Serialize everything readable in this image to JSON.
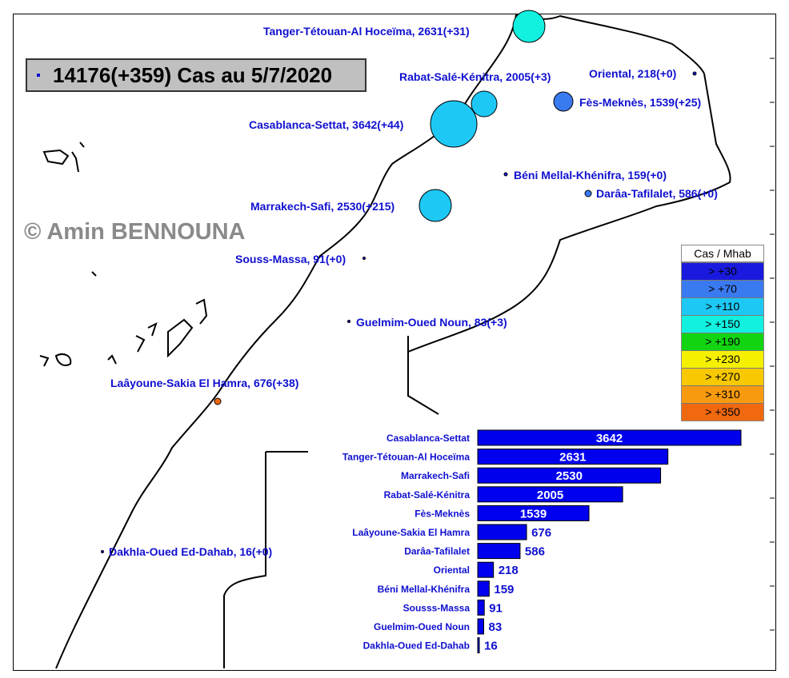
{
  "title": "14176(+359) Cas au 5/7/2020",
  "copyright": "© Amin BENNOUNA",
  "legend": {
    "title": "Cas / Mhab",
    "items": [
      {
        "label": "> +30",
        "color": "#1a1adf"
      },
      {
        "label": "> +70",
        "color": "#3a7af0"
      },
      {
        "label": "> +110",
        "color": "#1ec8f5"
      },
      {
        "label": "> +150",
        "color": "#12f0e0"
      },
      {
        "label": "> +190",
        "color": "#12d412"
      },
      {
        "label": "> +230",
        "color": "#f5f000"
      },
      {
        "label": "> +270",
        "color": "#f8c800"
      },
      {
        "label": "> +310",
        "color": "#f89a10"
      },
      {
        "label": "> +350",
        "color": "#f06810"
      }
    ]
  },
  "map_labels": [
    {
      "text": "Tanger-Tétouan-Al Hoceïma, 2631(+31)"
    },
    {
      "text": "Rabat-Salé-Kénitra, 2005(+3)"
    },
    {
      "text": "Oriental, 218(+0)"
    },
    {
      "text": "Fès-Meknès, 1539(+25)"
    },
    {
      "text": "Casablanca-Settat, 3642(+44)"
    },
    {
      "text": "Béni Mellal-Khénifra, 159(+0)"
    },
    {
      "text": "Darâa-Tafilalet, 586(+0)"
    },
    {
      "text": "Marrakech-Safi, 2530(+215)"
    },
    {
      "text": "Souss-Massa, 91(+0)"
    },
    {
      "text": "Guelmim-Oued Noun, 83(+3)"
    },
    {
      "text": "Laâyoune-Sakia El Hamra, 676(+38)"
    },
    {
      "text": "Dakhla-Oued Ed-Dahab, 16(+0)"
    }
  ],
  "chart_data": {
    "type": "bar",
    "orientation": "horizontal",
    "categories": [
      "Casablanca-Settat",
      "Tanger-Tétouan-Al Hoceïma",
      "Marrakech-Safi",
      "Rabat-Salé-Kénitra",
      "Fès-Meknès",
      "Laâyoune-Sakia El Hamra",
      "Darâa-Tafilalet",
      "Oriental",
      "Béni Mellal-Khénifra",
      "Sousss-Massa",
      "Guelmim-Oued Noun",
      "Dakhla-Oued Ed-Dahab"
    ],
    "values": [
      3642,
      2631,
      2530,
      2005,
      1539,
      676,
      586,
      218,
      159,
      91,
      83,
      16
    ],
    "bar_color": "#0000ee",
    "xlim": [
      0,
      3642
    ]
  }
}
